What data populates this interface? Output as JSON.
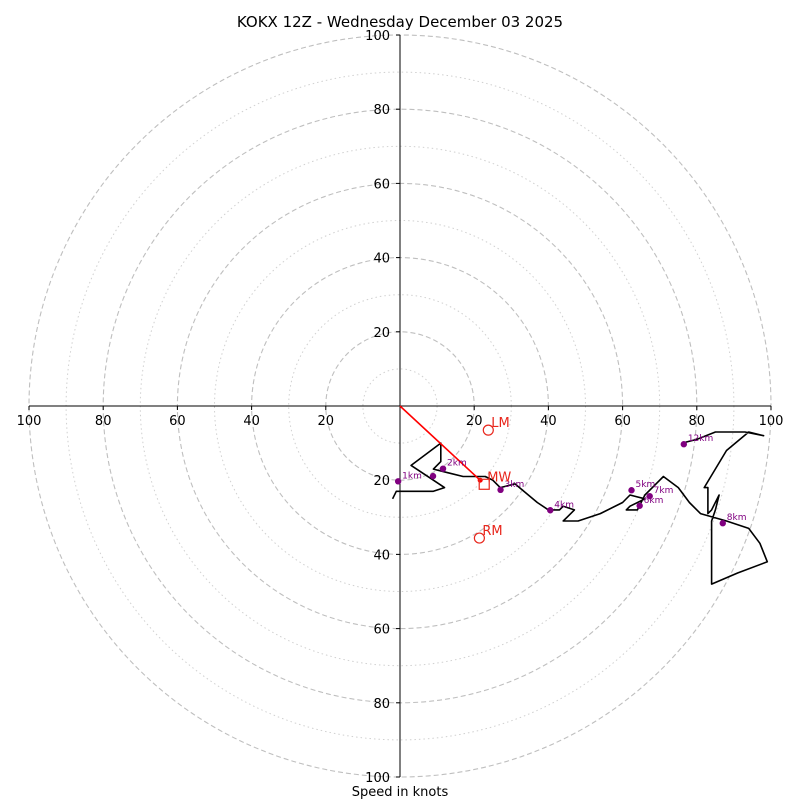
{
  "chart_data": {
    "type": "hodograph",
    "title": "KOKX 12Z - Wednesday December 03 2025",
    "xlabel": "Speed in knots",
    "range": [
      -100,
      100
    ],
    "ring_major": [
      20,
      40,
      60,
      80,
      100
    ],
    "ring_minor": [
      10,
      30,
      50,
      70,
      90
    ],
    "ticks_x": [
      {
        "v": -100,
        "label": "100"
      },
      {
        "v": -80,
        "label": "80"
      },
      {
        "v": -60,
        "label": "60"
      },
      {
        "v": -40,
        "label": "40"
      },
      {
        "v": -20,
        "label": "20"
      },
      {
        "v": 20,
        "label": "20"
      },
      {
        "v": 40,
        "label": "40"
      },
      {
        "v": 60,
        "label": "60"
      },
      {
        "v": 80,
        "label": "80"
      },
      {
        "v": 100,
        "label": "100"
      }
    ],
    "ticks_y": [
      {
        "v": 100,
        "label": "100"
      },
      {
        "v": 80,
        "label": "80"
      },
      {
        "v": 60,
        "label": "60"
      },
      {
        "v": 40,
        "label": "40"
      },
      {
        "v": 20,
        "label": "20"
      },
      {
        "v": -20,
        "label": "20"
      },
      {
        "v": -40,
        "label": "40"
      },
      {
        "v": -60,
        "label": "60"
      },
      {
        "v": -80,
        "label": "80"
      },
      {
        "v": -100,
        "label": "100"
      }
    ],
    "trace": [
      [
        -2,
        -25
      ],
      [
        -1,
        -23
      ],
      [
        9,
        -23
      ],
      [
        12,
        -22
      ],
      [
        9,
        -20
      ],
      [
        3,
        -16
      ],
      [
        11,
        -10
      ],
      [
        11,
        -15
      ],
      [
        9,
        -17
      ],
      [
        13,
        -18
      ],
      [
        17,
        -19
      ],
      [
        20,
        -19
      ],
      [
        23,
        -19
      ],
      [
        25,
        -20
      ],
      [
        27,
        -22
      ],
      [
        31,
        -21
      ],
      [
        37,
        -26
      ],
      [
        40,
        -28
      ],
      [
        43,
        -28
      ],
      [
        44,
        -27
      ],
      [
        47,
        -28
      ],
      [
        45,
        -30
      ],
      [
        44,
        -31
      ],
      [
        48,
        -31
      ],
      [
        54,
        -29
      ],
      [
        60,
        -26
      ],
      [
        62,
        -24
      ],
      [
        66,
        -25
      ],
      [
        62,
        -27
      ],
      [
        61,
        -28
      ],
      [
        64,
        -28
      ],
      [
        66,
        -24
      ],
      [
        69,
        -21
      ],
      [
        71,
        -19
      ],
      [
        75,
        -22
      ],
      [
        78,
        -26
      ],
      [
        81,
        -29
      ],
      [
        88,
        -31
      ],
      [
        94,
        -33
      ],
      [
        97,
        -37
      ],
      [
        99,
        -42
      ],
      [
        91,
        -45
      ],
      [
        84,
        -48
      ],
      [
        84,
        -37
      ],
      [
        84,
        -31
      ],
      [
        85,
        -28
      ],
      [
        86,
        -24
      ],
      [
        84,
        -28
      ],
      [
        83,
        -29
      ],
      [
        83,
        -26
      ],
      [
        83,
        -22
      ],
      [
        82,
        -22
      ],
      [
        88,
        -12
      ],
      [
        94,
        -7
      ],
      [
        98,
        -8
      ],
      [
        93,
        -7
      ],
      [
        85,
        -7
      ],
      [
        80,
        -9
      ],
      [
        76,
        -10
      ]
    ],
    "height_markers": [
      {
        "label": "1km",
        "u": -0.5,
        "v": -20.3
      },
      {
        "label": "2km",
        "u": 11.6,
        "v": -16.9
      },
      {
        "label": "",
        "u": 8.9,
        "v": -18.9
      },
      {
        "label": "3km",
        "u": 27.1,
        "v": -22.6
      },
      {
        "label": "4km",
        "u": 40.5,
        "v": -28.1
      },
      {
        "label": "5km",
        "u": 62.4,
        "v": -22.7
      },
      {
        "label": "6km",
        "u": 64.6,
        "v": -26.9
      },
      {
        "label": "7km",
        "u": 67.3,
        "v": -24.3
      },
      {
        "label": "8km",
        "u": 87.0,
        "v": -31.6
      },
      {
        "label": "12km",
        "u": 76.5,
        "v": -10.3
      }
    ],
    "storm_motion": [
      {
        "label": "LM",
        "u": 23.8,
        "v": -6.5,
        "shape": "circle"
      },
      {
        "label": "MW",
        "u": 22.7,
        "v": -21.1,
        "shape": "square"
      },
      {
        "label": "RM",
        "u": 21.4,
        "v": -35.6,
        "shape": "circle"
      }
    ],
    "motion_vector": {
      "u": 21.6,
      "v": -20.0
    },
    "colors": {
      "trace": "#000000",
      "ring": "#bfbfbf",
      "marker": "#800080",
      "motion": "#e8261c",
      "vector": "#ff0000"
    }
  }
}
